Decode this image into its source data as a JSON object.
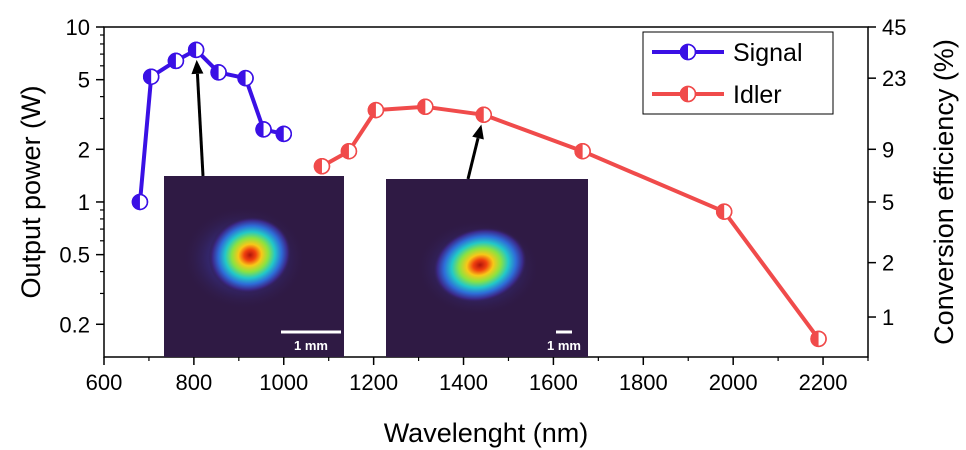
{
  "chart_data": {
    "type": "line",
    "title": "",
    "xlabel": "Wavelenght (nm)",
    "ylabel": "Output power (W)",
    "y2label": "Conversion efficiency (%)",
    "xlim": [
      600,
      2300
    ],
    "ylim": [
      0.13,
      10
    ],
    "yscale": "log",
    "grid": false,
    "legend_position": "top-right",
    "x_ticks": [
      600,
      800,
      1000,
      1200,
      1400,
      1600,
      1800,
      2000,
      2200
    ],
    "x_tick_labels": [
      "600",
      "800",
      "1000",
      "1200",
      "1400",
      "1600",
      "1800",
      "2000",
      "2200"
    ],
    "y_ticks": [
      0.2,
      0.5,
      1,
      2,
      5,
      10
    ],
    "y_tick_labels": [
      "0.2",
      "0.5",
      "1",
      "2",
      "5",
      "10"
    ],
    "y2_ticks": [
      {
        "label": "45",
        "power": 10
      },
      {
        "label": "23",
        "power": 5.1
      },
      {
        "label": "9",
        "power": 2.0
      },
      {
        "label": "5",
        "power": 1.0
      },
      {
        "label": "2",
        "power": 0.45
      },
      {
        "label": "1",
        "power": 0.22
      }
    ],
    "series": [
      {
        "name": "Signal",
        "color": "#3a10e5",
        "x": [
          680,
          705,
          760,
          805,
          855,
          915,
          955,
          1000
        ],
        "y": [
          1.0,
          5.2,
          6.4,
          7.4,
          5.5,
          5.1,
          2.6,
          2.45
        ]
      },
      {
        "name": "Idler",
        "color": "#f04b4b",
        "x": [
          1085,
          1145,
          1205,
          1315,
          1445,
          1665,
          1980,
          2190
        ],
        "y": [
          1.6,
          1.95,
          3.35,
          3.5,
          3.15,
          1.95,
          0.88,
          0.165
        ]
      }
    ],
    "annotations": [
      {
        "text": "1 mm",
        "inset": "signal-beam-profile",
        "points_to": {
          "x": 805,
          "y": 7.4
        }
      },
      {
        "text": "1 mm",
        "inset": "idler-beam-profile",
        "points_to": {
          "x": 1445,
          "y": 3.15
        }
      }
    ]
  }
}
